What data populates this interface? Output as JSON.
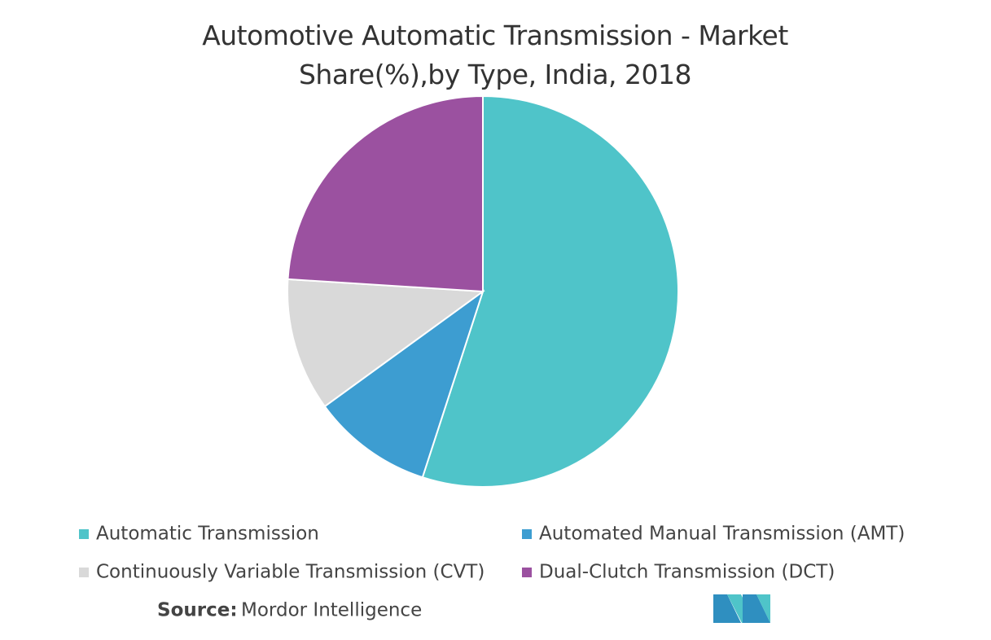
{
  "chart_data": {
    "type": "pie",
    "title": "Automotive Automatic Transmission - Market Share(%),by Type, India, 2018",
    "categories": [
      "Automatic Transmission",
      "Automated Manual Transmission (AMT)",
      "Continuously Variable Transmission (CVT)",
      "Dual-Clutch Transmission (DCT)"
    ],
    "values": [
      55,
      10,
      11,
      24
    ],
    "colors": [
      "#4fc4c9",
      "#3d9dd1",
      "#d9d9d9",
      "#9b51a0"
    ],
    "source_label": "Source:",
    "source": "Mordor Intelligence"
  }
}
